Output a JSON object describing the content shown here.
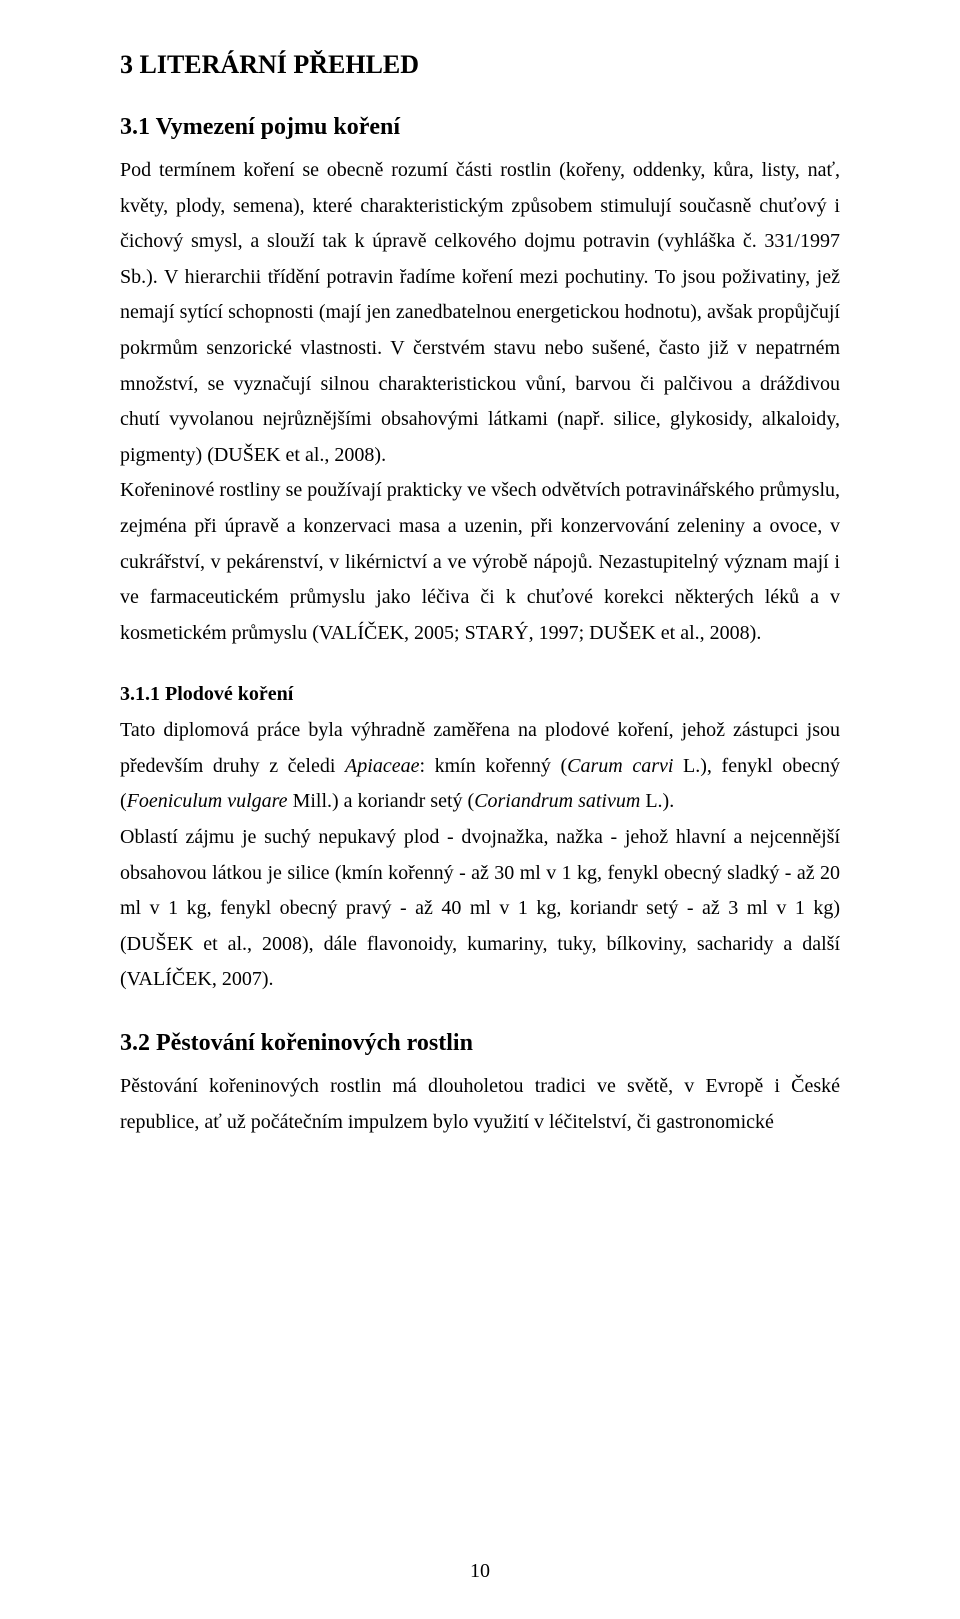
{
  "page": {
    "number": "10",
    "background_color": "#ffffff",
    "text_color": "#000000"
  },
  "headings": {
    "h1": "3  LITERÁRNÍ  PŘEHLED",
    "h2_1": "3.1 Vymezení  pojmu  koření",
    "h3_1": "3.1.1 Plodové koření",
    "h2_2": "3.2  Pěstování  kořeninových rostlin"
  },
  "paragraphs": {
    "p1_a": "Pod termínem koření se obecně rozumí části rostlin (kořeny, oddenky, kůra, listy, nať, květy, plody, semena), které charakteristickým způsobem stimulují současně chuťový i čichový smysl, a slouží tak k úpravě celkového dojmu potravin (vyhláška č. 331/1997 Sb.). V hierarchii třídění potravin řadíme koření mezi pochutiny. To jsou poživatiny, jež nemají sytící schopnosti (mají jen zanedbatelnou   energetickou hodnotu), avšak propůjčují pokrmům senzorické vlastnosti. V čerstvém stavu nebo sušené, často již v nepatrném  množství, se vyznačují silnou charakteristickou vůní, barvou či palčivou  a dráždivou chutí vyvolanou nejrůznějšími obsahovými látkami (např. silice, glykosidy, alkaloidy, pigmenty) (DUŠEK et al., 2008).",
    "p1_b": " Kořeninové rostliny se používají prakticky ve všech odvětvích potravinářského průmyslu, zejména při úpravě a konzervaci masa a uzenin, při konzervování zeleniny a ovoce, v cukrářství, v  pekárenství, v likérnictví a  ve výrobě nápojů.  Nezastupitelný význam mají i ve farmaceutickém průmyslu jako léčiva či k chuťové korekci  některých léků  a  v kosmetickém průmyslu (VALÍČEK, 2005; STARÝ, 1997; DUŠEK et al., 2008).",
    "p2_a": "Tato diplomová práce byla výhradně zaměřena na plodové koření, jehož zástupci jsou především druhy z čeledi ",
    "p2_italic1": "Apiaceae",
    "p2_b": ": kmín kořenný (",
    "p2_italic2": "Carum carvi",
    "p2_c": " L.), fenykl obecný (",
    "p2_italic3": "Foeniculum vulgare",
    "p2_d": " Mill.) a koriandr setý (",
    "p2_italic4": "Coriandrum sativum",
    "p2_e": " L.).",
    "p3": "Oblastí zájmu je suchý nepukavý plod - dvojnažka, nažka -  jehož hlavní a nejcennější obsahovou látkou je silice (kmín kořenný - až 30 ml v 1 kg, fenykl obecný sladký - až 20 ml v 1 kg, fenykl obecný pravý - až 40 ml v 1 kg, koriandr setý - až 3 ml v 1 kg) (DUŠEK et al., 2008), dále flavonoidy, kumariny, tuky, bílkoviny, sacharidy a další (VALÍČEK, 2007).",
    "p4": "Pěstování kořeninových rostlin má dlouholetou tradici ve světě, v Evropě i České republice, ať už počátečním impulzem bylo využití v léčitelství, či gastronomické"
  },
  "typography": {
    "body_font_family": "Times New Roman",
    "body_font_size_pt": 12,
    "h1_font_size_pt": 16,
    "h2_font_size_pt": 14,
    "h3_font_size_pt": 12,
    "line_spacing": 1.78,
    "alignment": "justify"
  }
}
